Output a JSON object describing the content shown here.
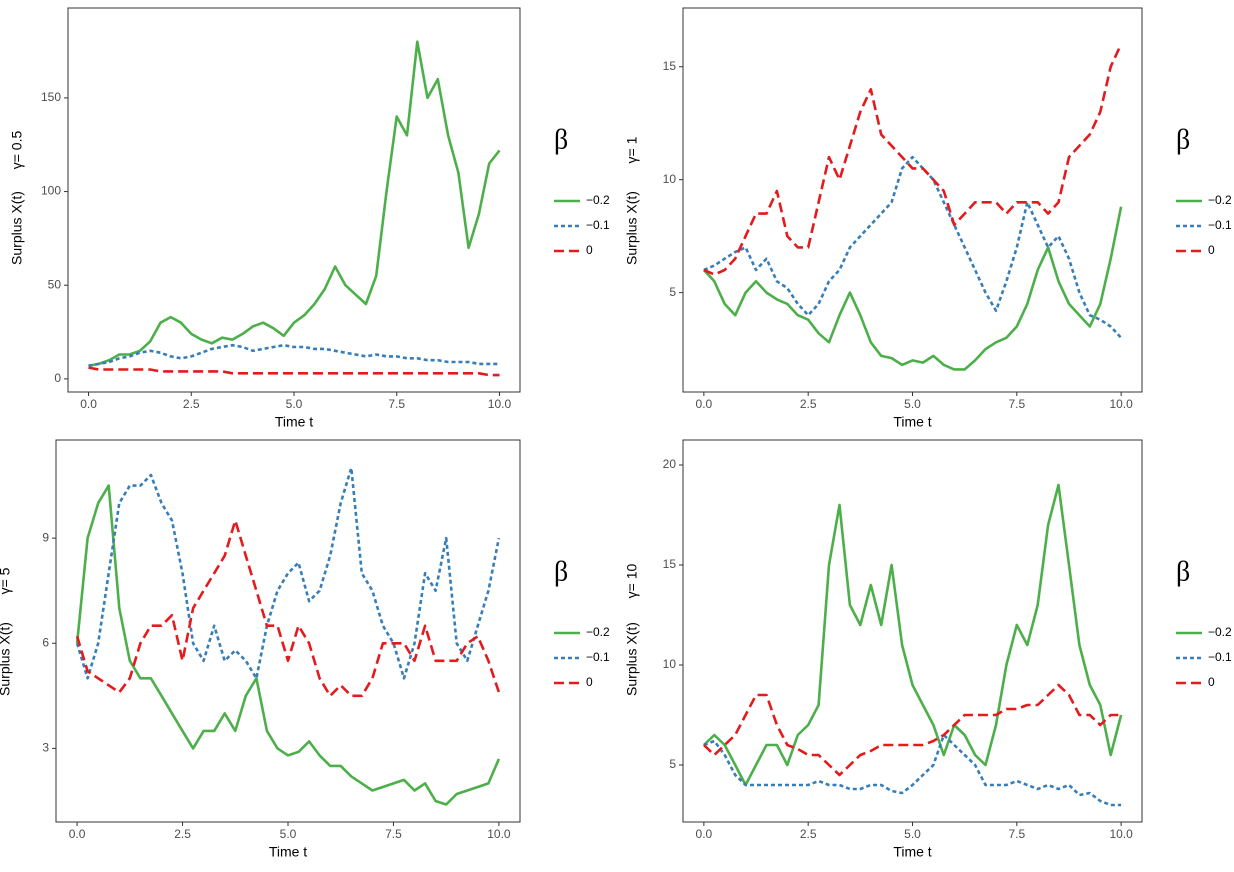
{
  "chart_data": [
    {
      "type": "line",
      "xlabel": "Time t",
      "ylabel": "Surplus X(t)",
      "ylabel2": "γ= 0.5",
      "legend_title": "β",
      "x": [
        0,
        0.25,
        0.5,
        0.75,
        1,
        1.25,
        1.5,
        1.75,
        2,
        2.25,
        2.5,
        2.75,
        3,
        3.25,
        3.5,
        3.75,
        4,
        4.25,
        4.5,
        4.75,
        5,
        5.25,
        5.5,
        5.75,
        6,
        6.25,
        6.5,
        6.75,
        7,
        7.25,
        7.5,
        7.75,
        8,
        8.25,
        8.5,
        8.75,
        9,
        9.25,
        9.5,
        9.75,
        10
      ],
      "xlim": [
        -0.5,
        10.5
      ],
      "ylim": [
        -7,
        198
      ],
      "xticks": [
        {
          "value": 0,
          "label": "0.0"
        },
        2.5,
        {
          "value": 5,
          "label": "5.0"
        },
        7.5,
        {
          "value": 10,
          "label": "10.0"
        }
      ],
      "yticks": [
        0,
        50,
        100,
        150
      ],
      "series": [
        {
          "name": "−0.2",
          "color": "#4daf4a",
          "linestyle": "solid",
          "values": [
            7,
            8,
            10,
            13,
            13,
            15,
            20,
            30,
            33,
            30,
            24,
            21,
            19,
            22,
            21,
            24,
            28,
            30,
            27,
            23,
            30,
            34,
            40,
            48,
            60,
            50,
            45,
            40,
            55,
            100,
            140,
            130,
            180,
            150,
            160,
            130,
            110,
            70,
            88,
            115,
            122
          ]
        },
        {
          "name": "−0.1",
          "color": "#377eb8",
          "linestyle": "dotted",
          "values": [
            7,
            8,
            9,
            11,
            12,
            14,
            15,
            14,
            12,
            11,
            12,
            14,
            16,
            17,
            18,
            17,
            15,
            16,
            17,
            18,
            17,
            17,
            16,
            16,
            15,
            14,
            13,
            12,
            13,
            12,
            12,
            11,
            11,
            10,
            10,
            9,
            9,
            9,
            8,
            8,
            8
          ]
        },
        {
          "name": "0",
          "color": "#e41a1c",
          "linestyle": "dashed",
          "values": [
            6,
            5,
            5,
            5,
            5,
            5,
            5,
            4,
            4,
            4,
            4,
            4,
            4,
            4,
            3,
            3,
            3,
            3,
            3,
            3,
            3,
            3,
            3,
            3,
            3,
            3,
            3,
            3,
            3,
            3,
            3,
            3,
            3,
            3,
            3,
            3,
            3,
            3,
            3,
            2,
            2
          ]
        }
      ]
    },
    {
      "type": "line",
      "xlabel": "Time t",
      "ylabel": "Surplus X(t)",
      "ylabel2": "γ= 1",
      "legend_title": "β",
      "x": [
        0,
        0.25,
        0.5,
        0.75,
        1,
        1.25,
        1.5,
        1.75,
        2,
        2.25,
        2.5,
        2.75,
        3,
        3.25,
        3.5,
        3.75,
        4,
        4.25,
        4.5,
        4.75,
        5,
        5.25,
        5.5,
        5.75,
        6,
        6.25,
        6.5,
        6.75,
        7,
        7.25,
        7.5,
        7.75,
        8,
        8.25,
        8.5,
        8.75,
        9,
        9.25,
        9.5,
        9.75,
        10
      ],
      "xlim": [
        -0.5,
        10.5
      ],
      "ylim": [
        0.6,
        17.6
      ],
      "xticks": [
        {
          "value": 0,
          "label": "0.0"
        },
        2.5,
        {
          "value": 5,
          "label": "5.0"
        },
        7.5,
        {
          "value": 10,
          "label": "10.0"
        }
      ],
      "yticks": [
        5,
        10,
        15
      ],
      "series": [
        {
          "name": "−0.2",
          "color": "#4daf4a",
          "linestyle": "solid",
          "values": [
            6,
            5.5,
            4.5,
            4,
            5,
            5.5,
            5,
            4.7,
            4.5,
            4,
            3.8,
            3.2,
            2.8,
            4,
            5,
            4,
            2.8,
            2.2,
            2.1,
            1.8,
            2,
            1.9,
            2.2,
            1.8,
            1.6,
            1.6,
            2,
            2.5,
            2.8,
            3,
            3.5,
            4.5,
            6,
            7,
            5.5,
            4.5,
            4,
            3.5,
            4.5,
            6.5,
            8.8
          ]
        },
        {
          "name": "−0.1",
          "color": "#377eb8",
          "linestyle": "dotted",
          "values": [
            6,
            6.2,
            6.5,
            6.8,
            7,
            6,
            6.5,
            5.5,
            5.2,
            4.5,
            4,
            4.5,
            5.5,
            6,
            7,
            7.5,
            8,
            8.5,
            9,
            10.5,
            11,
            10.5,
            10,
            9,
            8,
            7,
            6,
            5,
            4.2,
            5.5,
            7,
            9,
            8,
            7,
            7.5,
            6.5,
            5,
            4,
            3.8,
            3.5,
            3
          ]
        },
        {
          "name": "0",
          "color": "#e41a1c",
          "linestyle": "dashed",
          "values": [
            6,
            5.8,
            6,
            6.5,
            7.5,
            8.5,
            8.5,
            9.5,
            7.5,
            7,
            7,
            9,
            11,
            10,
            11.5,
            13,
            14,
            12,
            11.5,
            11,
            10.5,
            10.5,
            10,
            9.5,
            8,
            8.5,
            9,
            9,
            9,
            8.5,
            9,
            9,
            9,
            8.5,
            9,
            11,
            11.5,
            12,
            13,
            15,
            16
          ]
        }
      ]
    },
    {
      "type": "line",
      "xlabel": "Time t",
      "ylabel": "Surplus X(t)",
      "ylabel2": "γ= 5",
      "legend_title": "β",
      "x": [
        0,
        0.25,
        0.5,
        0.75,
        1,
        1.25,
        1.5,
        1.75,
        2,
        2.25,
        2.5,
        2.75,
        3,
        3.25,
        3.5,
        3.75,
        4,
        4.25,
        4.5,
        4.75,
        5,
        5.25,
        5.5,
        5.75,
        6,
        6.25,
        6.5,
        6.75,
        7,
        7.25,
        7.5,
        7.75,
        8,
        8.25,
        8.5,
        8.75,
        9,
        9.25,
        9.5,
        9.75,
        10
      ],
      "xlim": [
        -0.5,
        10.5
      ],
      "ylim": [
        0.9,
        11.8
      ],
      "xticks": [
        {
          "value": 0,
          "label": "0.0"
        },
        2.5,
        {
          "value": 5,
          "label": "5.0"
        },
        7.5,
        {
          "value": 10,
          "label": "10.0"
        }
      ],
      "yticks": [
        3,
        6,
        9
      ],
      "series": [
        {
          "name": "−0.2",
          "color": "#4daf4a",
          "linestyle": "solid",
          "values": [
            6,
            9,
            10,
            10.5,
            7,
            5.5,
            5,
            5,
            4.5,
            4,
            3.5,
            3,
            3.5,
            3.5,
            4,
            3.5,
            4.5,
            5,
            3.5,
            3,
            2.8,
            2.9,
            3.2,
            2.8,
            2.5,
            2.5,
            2.2,
            2,
            1.8,
            1.9,
            2,
            2.1,
            1.8,
            2,
            1.5,
            1.4,
            1.7,
            1.8,
            1.9,
            2,
            2.7
          ]
        },
        {
          "name": "−0.1",
          "color": "#377eb8",
          "linestyle": "dotted",
          "values": [
            6,
            5,
            6,
            8,
            10,
            10.5,
            10.5,
            10.8,
            10,
            9.5,
            8,
            6,
            5.5,
            6.5,
            5.5,
            5.8,
            5.5,
            5,
            6.5,
            7.5,
            8,
            8.3,
            7.2,
            7.5,
            8.5,
            10,
            11,
            8,
            7.5,
            6.5,
            6,
            5,
            6,
            8,
            7.5,
            9,
            6,
            5.5,
            6.5,
            7.5,
            9
          ]
        },
        {
          "name": "0",
          "color": "#e41a1c",
          "linestyle": "dashed",
          "values": [
            6.2,
            5.2,
            5,
            4.8,
            4.6,
            5,
            6,
            6.5,
            6.5,
            6.8,
            5.5,
            7,
            7.5,
            8,
            8.5,
            9.5,
            8.5,
            7.5,
            6.5,
            6.5,
            5.5,
            6.5,
            6,
            5,
            4.5,
            4.8,
            4.5,
            4.5,
            5,
            6,
            6,
            6,
            5.5,
            6.5,
            5.5,
            5.5,
            5.5,
            6,
            6.2,
            5.5,
            4.6
          ]
        }
      ]
    },
    {
      "type": "line",
      "xlabel": "Time t",
      "ylabel": "Surplus X(t)",
      "ylabel2": "γ= 10",
      "legend_title": "β",
      "x": [
        0,
        0.25,
        0.5,
        0.75,
        1,
        1.25,
        1.5,
        1.75,
        2,
        2.25,
        2.5,
        2.75,
        3,
        3.25,
        3.5,
        3.75,
        4,
        4.25,
        4.5,
        4.75,
        5,
        5.25,
        5.5,
        5.75,
        6,
        6.25,
        6.5,
        6.75,
        7,
        7.25,
        7.5,
        7.75,
        8,
        8.25,
        8.5,
        8.75,
        9,
        9.25,
        9.5,
        9.75,
        10
      ],
      "xlim": [
        -0.5,
        10.5
      ],
      "ylim": [
        2.15,
        21.25
      ],
      "xticks": [
        {
          "value": 0,
          "label": "0.0"
        },
        2.5,
        {
          "value": 5,
          "label": "5.0"
        },
        7.5,
        {
          "value": 10,
          "label": "10.0"
        }
      ],
      "yticks": [
        5,
        10,
        15,
        20
      ],
      "series": [
        {
          "name": "−0.2",
          "color": "#4daf4a",
          "linestyle": "solid",
          "values": [
            6,
            6.5,
            6,
            5,
            4,
            5,
            6,
            6,
            5,
            6.5,
            7,
            8,
            15,
            18,
            13,
            12,
            14,
            12,
            15,
            11,
            9,
            8,
            7,
            5.5,
            7,
            6.5,
            5.5,
            5,
            7,
            10,
            12,
            11,
            13,
            17,
            19,
            15,
            11,
            9,
            8,
            5.5,
            7.5
          ]
        },
        {
          "name": "−0.1",
          "color": "#377eb8",
          "linestyle": "dotted",
          "values": [
            6,
            6.2,
            5.5,
            4.5,
            4,
            4,
            4,
            4,
            4,
            4,
            4,
            4.2,
            4,
            4,
            3.8,
            3.8,
            4,
            4,
            3.7,
            3.6,
            4,
            4.5,
            5,
            6.5,
            6,
            5.5,
            5,
            4,
            4,
            4,
            4.2,
            4,
            3.8,
            4,
            3.8,
            4,
            3.5,
            3.6,
            3.2,
            3,
            3
          ]
        },
        {
          "name": "0",
          "color": "#e41a1c",
          "linestyle": "dashed",
          "values": [
            6,
            5.5,
            6,
            6.5,
            7.5,
            8.5,
            8.5,
            7,
            6,
            5.8,
            5.5,
            5.5,
            5,
            4.5,
            5,
            5.5,
            5.7,
            6,
            6,
            6,
            6,
            6,
            6.2,
            6.5,
            7,
            7.5,
            7.5,
            7.5,
            7.5,
            7.8,
            7.8,
            8,
            8,
            8.5,
            9,
            8.5,
            7.5,
            7.5,
            7,
            7.5,
            7.5
          ]
        }
      ]
    }
  ]
}
